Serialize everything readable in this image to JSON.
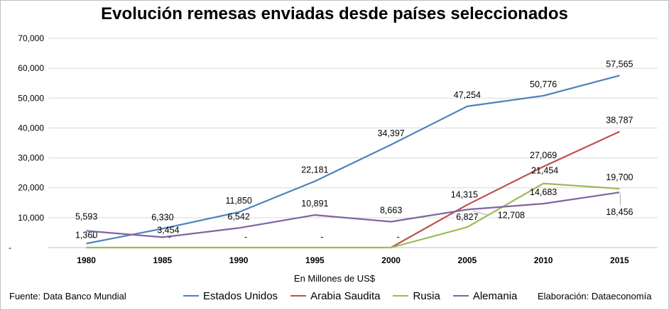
{
  "header": {
    "title": "Evolución remesas enviadas desde países seleccionados"
  },
  "footer": {
    "source": "Fuente: Data Banco Mundial",
    "credit": "Elaboración: Dataeconomía"
  },
  "chart_data": {
    "type": "line",
    "title": "Evolución remesas enviadas desde países seleccionados",
    "xlabel": "En Millones de US$",
    "ylabel": "",
    "categories": [
      "1980",
      "1985",
      "1990",
      "1995",
      "2000",
      "2005",
      "2010",
      "2015"
    ],
    "ylim": [
      0,
      70000
    ],
    "yticks": [
      0,
      10000,
      20000,
      30000,
      40000,
      50000,
      60000,
      70000
    ],
    "ytick_labels": [
      "-",
      "10,000",
      "20,000",
      "30,000",
      "40,000",
      "50,000",
      "60,000",
      "70,000"
    ],
    "grid": true,
    "legend_position": "bottom",
    "series": [
      {
        "name": "Estados Unidos",
        "color": "#4f81bd",
        "values": [
          1360,
          6330,
          11850,
          22181,
          34397,
          47254,
          50776,
          57565
        ],
        "labels": [
          "1,360",
          "6,330",
          "11,850",
          "22,181",
          "34,397",
          "47,254",
          "50,776",
          "57,565"
        ]
      },
      {
        "name": "Arabia Saudita",
        "color": "#c0504d",
        "values": [
          null,
          null,
          null,
          null,
          0,
          14315,
          27069,
          38787
        ],
        "labels": [
          "",
          "",
          "",
          "",
          "",
          "14,315",
          "27,069",
          "38,787"
        ]
      },
      {
        "name": "Rusia",
        "color": "#9bbb59",
        "values": [
          0,
          0,
          0,
          0,
          0,
          6827,
          21454,
          19700
        ],
        "labels": [
          "-",
          "-",
          "-",
          "-",
          "-",
          "6,827",
          "21,454",
          "19,700"
        ]
      },
      {
        "name": "Alemania",
        "color": "#8064a2",
        "values": [
          5593,
          3454,
          6542,
          10891,
          8663,
          12708,
          14683,
          18456
        ],
        "labels": [
          "5,593",
          "3,454",
          "6,542",
          "10,891",
          "8,663",
          "12,708",
          "14,683",
          "18,456"
        ]
      }
    ]
  }
}
